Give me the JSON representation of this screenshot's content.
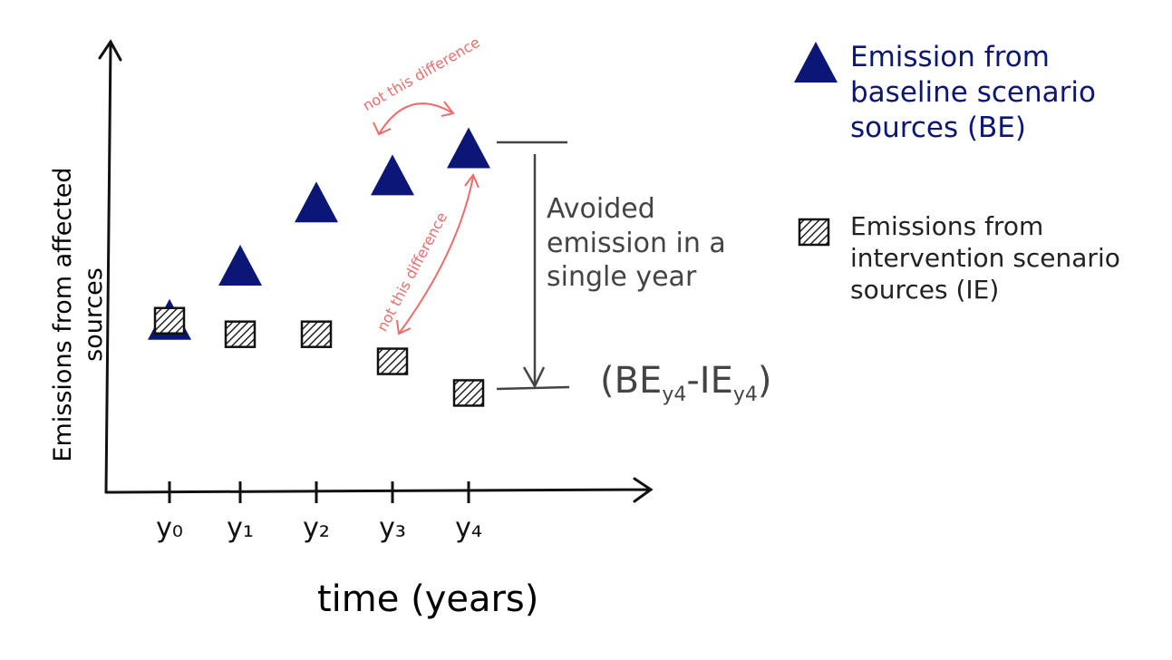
{
  "chart_data": {
    "type": "scatter",
    "x_label": "time (years)",
    "y_label": "Emissions from affected sources",
    "categories": [
      "y₀",
      "y₁",
      "y₂",
      "y₃",
      "y₄"
    ],
    "ylim": [
      0,
      100
    ],
    "series": [
      {
        "name": "Emission from baseline scenario sources (BE)",
        "color": "#0b1677",
        "marker": "triangle",
        "values": [
          38,
          50,
          64,
          70,
          76
        ]
      },
      {
        "name": "Emissions from intervention scenario sources (IE)",
        "color": "#222222",
        "marker": "hatched-square",
        "values": [
          38,
          35,
          35,
          29,
          22
        ]
      }
    ],
    "annotations": {
      "difference_note_1": "not this difference",
      "difference_note_2": "not this difference",
      "avoided": "Avoided emission in a single year",
      "formula": [
        "(BE",
        "y4",
        "-IE",
        "y4",
        ")"
      ]
    }
  }
}
